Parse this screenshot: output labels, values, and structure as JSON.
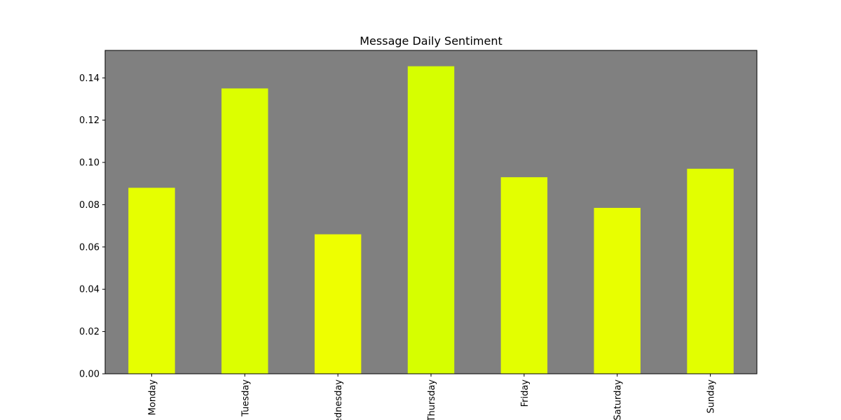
{
  "chart_data": {
    "type": "bar",
    "title": "Message Daily Sentiment",
    "xlabel": "",
    "ylabel": "",
    "categories": [
      "Monday",
      "Tuesday",
      "Wednesday",
      "Thursday",
      "Friday",
      "Saturday",
      "Sunday"
    ],
    "values": [
      0.088,
      0.135,
      0.066,
      0.1455,
      0.093,
      0.0785,
      0.097
    ],
    "bar_colors": [
      "#e6ff00",
      "#dcff00",
      "#eeff00",
      "#d6ff00",
      "#e3ff00",
      "#e8ff00",
      "#e2ff00"
    ],
    "ylim": [
      0,
      0.153
    ],
    "yticks": [
      "0.00",
      "0.02",
      "0.04",
      "0.06",
      "0.08",
      "0.10",
      "0.12",
      "0.14"
    ],
    "ytick_values": [
      0,
      0.02,
      0.04,
      0.06,
      0.08,
      0.1,
      0.12,
      0.14
    ],
    "background_color": "#808080",
    "grid": false,
    "legend": "none",
    "xtick_rotation": "vertical"
  }
}
